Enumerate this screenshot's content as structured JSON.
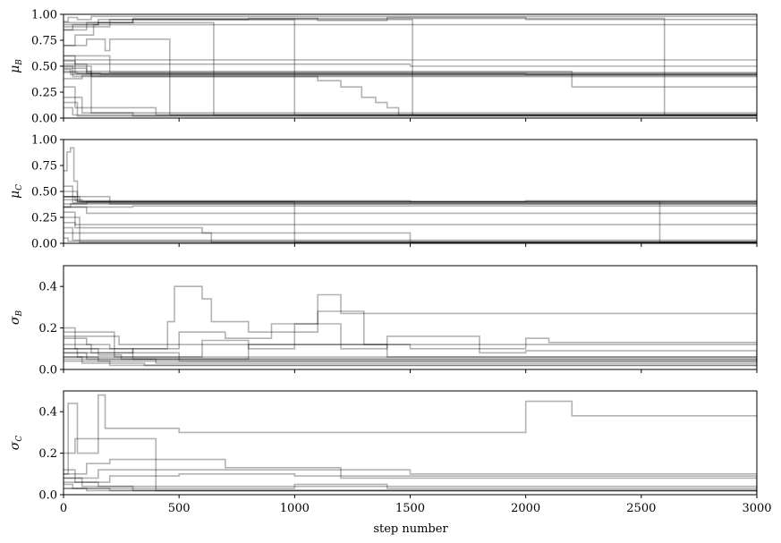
{
  "chart_data": {
    "type": "line",
    "xlabel": "step number",
    "xlim": [
      0,
      3000
    ],
    "xticks": [
      "0",
      "500",
      "1000",
      "1500",
      "2000",
      "2500",
      "3000"
    ],
    "line_color": "#000000",
    "line_opacity": 0.3,
    "panels": [
      {
        "ylabel_base": "μ",
        "ylabel_sub": "B",
        "ylim": [
          0,
          1
        ],
        "yticks": [
          "0.00",
          "0.25",
          "0.50",
          "0.75",
          "1.00"
        ],
        "show_xtick_labels": false,
        "series": [
          {
            "x": [
              0,
              20,
              60,
              120,
              3000
            ],
            "y": [
              0.93,
              0.97,
              0.95,
              0.98,
              0.98
            ]
          },
          {
            "x": [
              0,
              40,
              150,
              300,
              800,
              1100,
              1400,
              2000,
              3000
            ],
            "y": [
              0.85,
              0.9,
              0.92,
              0.95,
              0.96,
              0.94,
              0.97,
              0.95,
              0.96
            ]
          },
          {
            "x": [
              0,
              50,
              130,
              3000
            ],
            "y": [
              0.7,
              0.8,
              0.9,
              0.92
            ]
          },
          {
            "x": [
              0,
              100,
              180,
              200,
              400,
              460,
              3000
            ],
            "y": [
              0.7,
              0.76,
              0.65,
              0.76,
              0.76,
              0.03,
              0.03
            ]
          },
          {
            "x": [
              0,
              100,
              640,
              650,
              3000
            ],
            "y": [
              0.85,
              0.92,
              0.92,
              0.03,
              0.03
            ]
          },
          {
            "x": [
              0,
              150,
              990,
              1000,
              3000
            ],
            "y": [
              0.9,
              0.95,
              0.95,
              0.03,
              0.03
            ]
          },
          {
            "x": [
              0,
              200,
              1500,
              1510,
              3000
            ],
            "y": [
              0.88,
              0.95,
              0.95,
              0.03,
              0.03
            ]
          },
          {
            "x": [
              0,
              300,
              2580,
              2600,
              3000
            ],
            "y": [
              0.92,
              0.96,
              0.96,
              0.03,
              0.03
            ]
          },
          {
            "x": [
              0,
              40,
              1100,
              1200,
              1290,
              1350,
              1400,
              1450,
              3000
            ],
            "y": [
              0.5,
              0.4,
              0.36,
              0.3,
              0.2,
              0.15,
              0.1,
              0.03,
              0.03
            ]
          },
          {
            "x": [
              0,
              60,
              160,
              3000
            ],
            "y": [
              0.44,
              0.43,
              0.42,
              0.42
            ]
          },
          {
            "x": [
              0,
              30,
              3000
            ],
            "y": [
              0.47,
              0.42,
              0.43
            ]
          },
          {
            "x": [
              0,
              50,
              3000
            ],
            "y": [
              0.55,
              0.43,
              0.42
            ]
          },
          {
            "x": [
              0,
              200,
              3000
            ],
            "y": [
              0.6,
              0.44,
              0.43
            ]
          },
          {
            "x": [
              0,
              80,
              3000
            ],
            "y": [
              0.38,
              0.41,
              0.41
            ]
          },
          {
            "x": [
              0,
              120,
              3000
            ],
            "y": [
              0.45,
              0.4,
              0.4
            ]
          },
          {
            "x": [
              0,
              100,
              2000,
              3000
            ],
            "y": [
              0.48,
              0.43,
              0.42,
              0.43
            ]
          },
          {
            "x": [
              0,
              300,
              3000
            ],
            "y": [
              0.56,
              0.56,
              0.56
            ]
          },
          {
            "x": [
              0,
              50,
              1500,
              3000
            ],
            "y": [
              0.6,
              0.52,
              0.5,
              0.5
            ]
          },
          {
            "x": [
              0,
              100,
              2200,
              3000
            ],
            "y": [
              0.52,
              0.45,
              0.3,
              0.3
            ]
          },
          {
            "x": [
              0,
              50,
              400,
              3000
            ],
            "y": [
              0.3,
              0.1,
              0.03,
              0.02
            ]
          },
          {
            "x": [
              0,
              80,
              300,
              3000
            ],
            "y": [
              0.2,
              0.05,
              0.02,
              0.02
            ]
          },
          {
            "x": [
              0,
              40,
              3000
            ],
            "y": [
              0.1,
              0.03,
              0.02
            ]
          },
          {
            "x": [
              0,
              120,
              3000
            ],
            "y": [
              0.5,
              0.05,
              0.02
            ]
          },
          {
            "x": [
              0,
              60,
              3000
            ],
            "y": [
              0.15,
              0.02,
              0.02
            ]
          }
        ]
      },
      {
        "ylabel_base": "μ",
        "ylabel_sub": "C",
        "ylim": [
          0,
          1
        ],
        "yticks": [
          "0.00",
          "0.25",
          "0.50",
          "0.75",
          "1.00"
        ],
        "show_xtick_labels": false,
        "series": [
          {
            "x": [
              0,
              15,
              30,
              45,
              60,
              3000
            ],
            "y": [
              0.7,
              0.88,
              0.92,
              0.6,
              0.4,
              0.4
            ]
          },
          {
            "x": [
              0,
              40,
              3000
            ],
            "y": [
              0.55,
              0.39,
              0.4
            ]
          },
          {
            "x": [
              0,
              50,
              1500,
              3000
            ],
            "y": [
              0.45,
              0.41,
              0.4,
              0.4
            ]
          },
          {
            "x": [
              0,
              100,
              3000
            ],
            "y": [
              0.38,
              0.4,
              0.41
            ]
          },
          {
            "x": [
              0,
              30,
              3000
            ],
            "y": [
              0.35,
              0.38,
              0.39
            ]
          },
          {
            "x": [
              0,
              80,
              2000,
              3000
            ],
            "y": [
              0.42,
              0.4,
              0.41,
              0.4
            ]
          },
          {
            "x": [
              0,
              60,
              980,
              1000,
              3000
            ],
            "y": [
              0.5,
              0.4,
              0.4,
              0.01,
              0.01
            ]
          },
          {
            "x": [
              0,
              70,
              2570,
              2580,
              3000
            ],
            "y": [
              0.45,
              0.4,
              0.4,
              0.01,
              0.01
            ]
          },
          {
            "x": [
              0,
              50,
              600,
              640,
              3000
            ],
            "y": [
              0.3,
              0.15,
              0.1,
              0.01,
              0.01
            ]
          },
          {
            "x": [
              0,
              50,
              3000
            ],
            "y": [
              0.2,
              0.18,
              0.18
            ]
          },
          {
            "x": [
              0,
              100,
              3000
            ],
            "y": [
              0.35,
              0.29,
              0.29
            ]
          },
          {
            "x": [
              0,
              40,
              1500,
              3000
            ],
            "y": [
              0.15,
              0.1,
              0.01,
              0.01
            ]
          },
          {
            "x": [
              0,
              40,
              3000
            ],
            "y": [
              0.1,
              0.03,
              0.02
            ]
          },
          {
            "x": [
              0,
              20,
              3000
            ],
            "y": [
              0.05,
              0.02,
              0.01
            ]
          },
          {
            "x": [
              0,
              70,
              3000
            ],
            "y": [
              0.25,
              0.01,
              0.01
            ]
          },
          {
            "x": [
              0,
              200,
              3000
            ],
            "y": [
              0.45,
              0.38,
              0.38
            ]
          },
          {
            "x": [
              0,
              300,
              3000
            ],
            "y": [
              0.35,
              0.36,
              0.36
            ]
          }
        ]
      },
      {
        "ylabel_base": "σ",
        "ylabel_sub": "B",
        "ylim": [
          0,
          0.5
        ],
        "yticks": [
          "0.0",
          "0.2",
          "0.4"
        ],
        "show_xtick_labels": false,
        "series": [
          {
            "x": [
              0,
              100,
              200,
              300,
              3000
            ],
            "y": [
              0.15,
              0.12,
              0.1,
              0.05,
              0.04
            ]
          },
          {
            "x": [
              0,
              50,
              150,
              250,
              3000
            ],
            "y": [
              0.2,
              0.1,
              0.07,
              0.05,
              0.03
            ]
          },
          {
            "x": [
              0,
              100,
              400,
              3000
            ],
            "y": [
              0.08,
              0.05,
              0.03,
              0.02
            ]
          },
          {
            "x": [
              0,
              60,
              150,
              3000
            ],
            "y": [
              0.1,
              0.06,
              0.04,
              0.03
            ]
          },
          {
            "x": [
              0,
              120,
              500,
              3000
            ],
            "y": [
              0.12,
              0.08,
              0.04,
              0.04
            ]
          },
          {
            "x": [
              0,
              80,
              350,
              3000
            ],
            "y": [
              0.06,
              0.03,
              0.02,
              0.02
            ]
          },
          {
            "x": [
              0,
              200,
              3000
            ],
            "y": [
              0.04,
              0.02,
              0.01
            ]
          },
          {
            "x": [
              0,
              220,
              3000
            ],
            "y": [
              0.18,
              0.06,
              0.05
            ]
          },
          {
            "x": [
              0,
              240,
              3000
            ],
            "y": [
              0.16,
              0.12,
              0.12
            ]
          },
          {
            "x": [
              0,
              450,
              480,
              600,
              640,
              800,
              1100,
              1200,
              3000
            ],
            "y": [
              0.1,
              0.23,
              0.4,
              0.34,
              0.23,
              0.18,
              0.36,
              0.27,
              0.27
            ]
          },
          {
            "x": [
              0,
              300,
              500,
              700,
              900,
              1100,
              1300,
              1500,
              2000,
              2100,
              3000
            ],
            "y": [
              0.08,
              0.1,
              0.18,
              0.15,
              0.22,
              0.28,
              0.12,
              0.1,
              0.15,
              0.13,
              0.13
            ]
          },
          {
            "x": [
              0,
              600,
              800,
              1000,
              1200,
              1400,
              1800,
              2000,
              3000
            ],
            "y": [
              0.06,
              0.14,
              0.1,
              0.22,
              0.1,
              0.16,
              0.08,
              0.09,
              0.06
            ]
          },
          {
            "x": [
              0,
              800,
              1400,
              3000
            ],
            "y": [
              0.05,
              0.12,
              0.06,
              0.04
            ]
          }
        ]
      },
      {
        "ylabel_base": "σ",
        "ylabel_sub": "C",
        "ylim": [
          0,
          0.5
        ],
        "yticks": [
          "0.0",
          "0.2",
          "0.4"
        ],
        "show_xtick_labels": true,
        "series": [
          {
            "x": [
              0,
              20,
              60,
              150,
              180,
              500,
              2000,
              2200,
              3000
            ],
            "y": [
              0.1,
              0.44,
              0.2,
              0.48,
              0.32,
              0.3,
              0.45,
              0.38,
              0.38
            ]
          },
          {
            "x": [
              0,
              50,
              150,
              400,
              3000
            ],
            "y": [
              0.2,
              0.27,
              0.27,
              0.02,
              0.02
            ]
          },
          {
            "x": [
              0,
              100,
              200,
              700,
              1200,
              3000
            ],
            "y": [
              0.1,
              0.15,
              0.17,
              0.13,
              0.08,
              0.08
            ]
          },
          {
            "x": [
              0,
              150,
              300,
              1500,
              2800,
              3000
            ],
            "y": [
              0.08,
              0.12,
              0.12,
              0.1,
              0.1,
              0.1
            ]
          },
          {
            "x": [
              0,
              200,
              500,
              1000,
              3000
            ],
            "y": [
              0.06,
              0.09,
              0.1,
              0.09,
              0.03
            ]
          },
          {
            "x": [
              0,
              50,
              150,
              3000
            ],
            "y": [
              0.12,
              0.06,
              0.04,
              0.02
            ]
          },
          {
            "x": [
              0,
              80,
              300,
              3000
            ],
            "y": [
              0.08,
              0.04,
              0.02,
              0.01
            ]
          },
          {
            "x": [
              0,
              40,
              200,
              3000
            ],
            "y": [
              0.05,
              0.03,
              0.02,
              0.01
            ]
          },
          {
            "x": [
              0,
              100,
              3000
            ],
            "y": [
              0.03,
              0.02,
              0.01
            ]
          },
          {
            "x": [
              0,
              1000,
              1400,
              1800,
              3000
            ],
            "y": [
              0.03,
              0.05,
              0.03,
              0.03,
              0.02
            ]
          }
        ]
      }
    ]
  }
}
